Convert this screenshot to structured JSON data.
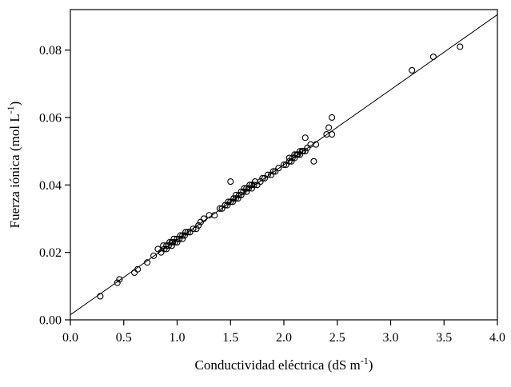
{
  "figure": {
    "description": "Scatter plot of ionic strength versus electrical conductivity with linear fit line"
  },
  "chart_data": {
    "type": "scatter",
    "title": "",
    "xlabel_parts": {
      "prefix": "Conductividad eléctrica (dS m",
      "sup": "-1",
      "suffix": ")"
    },
    "ylabel_parts": {
      "prefix": "Fuerza iónica (mol L",
      "sup": "-1",
      "suffix": ")"
    },
    "xlim": [
      0.0,
      4.0
    ],
    "ylim": [
      0.0,
      0.092
    ],
    "xticks": [
      0.0,
      0.5,
      1.0,
      1.5,
      2.0,
      2.5,
      3.0,
      3.5,
      4.0
    ],
    "xtick_labels": [
      "0.0",
      "0.5",
      "1.0",
      "1.5",
      "2.0",
      "2.5",
      "3.0",
      "3.5",
      "4.0"
    ],
    "yticks": [
      0.0,
      0.02,
      0.04,
      0.06,
      0.08
    ],
    "ytick_labels": [
      "0.00",
      "0.02",
      "0.04",
      "0.06",
      "0.08"
    ],
    "grid": false,
    "legend": "none",
    "marker": {
      "shape": "open-circle",
      "color": "#000000",
      "radius_px": 3.5
    },
    "fit_line": {
      "x1": 0.0,
      "y1": 0.0015,
      "x2": 4.0,
      "y2": 0.0905
    },
    "points": [
      [
        0.28,
        0.007
      ],
      [
        0.44,
        0.011
      ],
      [
        0.46,
        0.012
      ],
      [
        0.6,
        0.014
      ],
      [
        0.63,
        0.015
      ],
      [
        0.72,
        0.017
      ],
      [
        0.78,
        0.019
      ],
      [
        0.82,
        0.021
      ],
      [
        0.85,
        0.02
      ],
      [
        0.87,
        0.022
      ],
      [
        0.88,
        0.021
      ],
      [
        0.9,
        0.021
      ],
      [
        0.9,
        0.022
      ],
      [
        0.92,
        0.022
      ],
      [
        0.93,
        0.023
      ],
      [
        0.95,
        0.022
      ],
      [
        0.95,
        0.023
      ],
      [
        0.96,
        0.023
      ],
      [
        0.97,
        0.024
      ],
      [
        0.98,
        0.023
      ],
      [
        1.0,
        0.023
      ],
      [
        1.0,
        0.024
      ],
      [
        1.02,
        0.024
      ],
      [
        1.03,
        0.025
      ],
      [
        1.05,
        0.024
      ],
      [
        1.05,
        0.025
      ],
      [
        1.07,
        0.025
      ],
      [
        1.08,
        0.026
      ],
      [
        1.1,
        0.026
      ],
      [
        1.12,
        0.026
      ],
      [
        1.15,
        0.027
      ],
      [
        1.18,
        0.027
      ],
      [
        1.2,
        0.028
      ],
      [
        1.22,
        0.029
      ],
      [
        1.25,
        0.03
      ],
      [
        1.3,
        0.031
      ],
      [
        1.35,
        0.031
      ],
      [
        1.4,
        0.033
      ],
      [
        1.42,
        0.033
      ],
      [
        1.45,
        0.034
      ],
      [
        1.47,
        0.034
      ],
      [
        1.48,
        0.035
      ],
      [
        1.5,
        0.035
      ],
      [
        1.5,
        0.041
      ],
      [
        1.52,
        0.035
      ],
      [
        1.53,
        0.036
      ],
      [
        1.55,
        0.036
      ],
      [
        1.55,
        0.037
      ],
      [
        1.57,
        0.036
      ],
      [
        1.58,
        0.037
      ],
      [
        1.6,
        0.037
      ],
      [
        1.6,
        0.038
      ],
      [
        1.62,
        0.038
      ],
      [
        1.63,
        0.039
      ],
      [
        1.65,
        0.038
      ],
      [
        1.65,
        0.039
      ],
      [
        1.67,
        0.039
      ],
      [
        1.68,
        0.04
      ],
      [
        1.7,
        0.039
      ],
      [
        1.7,
        0.04
      ],
      [
        1.72,
        0.04
      ],
      [
        1.73,
        0.041
      ],
      [
        1.75,
        0.04
      ],
      [
        1.78,
        0.041
      ],
      [
        1.8,
        0.042
      ],
      [
        1.82,
        0.042
      ],
      [
        1.85,
        0.043
      ],
      [
        1.88,
        0.043
      ],
      [
        1.9,
        0.044
      ],
      [
        1.92,
        0.044
      ],
      [
        1.95,
        0.045
      ],
      [
        2.0,
        0.046
      ],
      [
        2.02,
        0.046
      ],
      [
        2.05,
        0.047
      ],
      [
        2.05,
        0.048
      ],
      [
        2.07,
        0.047
      ],
      [
        2.08,
        0.048
      ],
      [
        2.1,
        0.048
      ],
      [
        2.1,
        0.049
      ],
      [
        2.12,
        0.049
      ],
      [
        2.13,
        0.049
      ],
      [
        2.15,
        0.049
      ],
      [
        2.15,
        0.05
      ],
      [
        2.17,
        0.05
      ],
      [
        2.18,
        0.05
      ],
      [
        2.2,
        0.05
      ],
      [
        2.2,
        0.054
      ],
      [
        2.22,
        0.051
      ],
      [
        2.25,
        0.052
      ],
      [
        2.28,
        0.047
      ],
      [
        2.3,
        0.052
      ],
      [
        2.4,
        0.055
      ],
      [
        2.42,
        0.057
      ],
      [
        2.45,
        0.055
      ],
      [
        2.45,
        0.06
      ],
      [
        3.2,
        0.074
      ],
      [
        3.4,
        0.078
      ],
      [
        3.65,
        0.081
      ]
    ]
  }
}
